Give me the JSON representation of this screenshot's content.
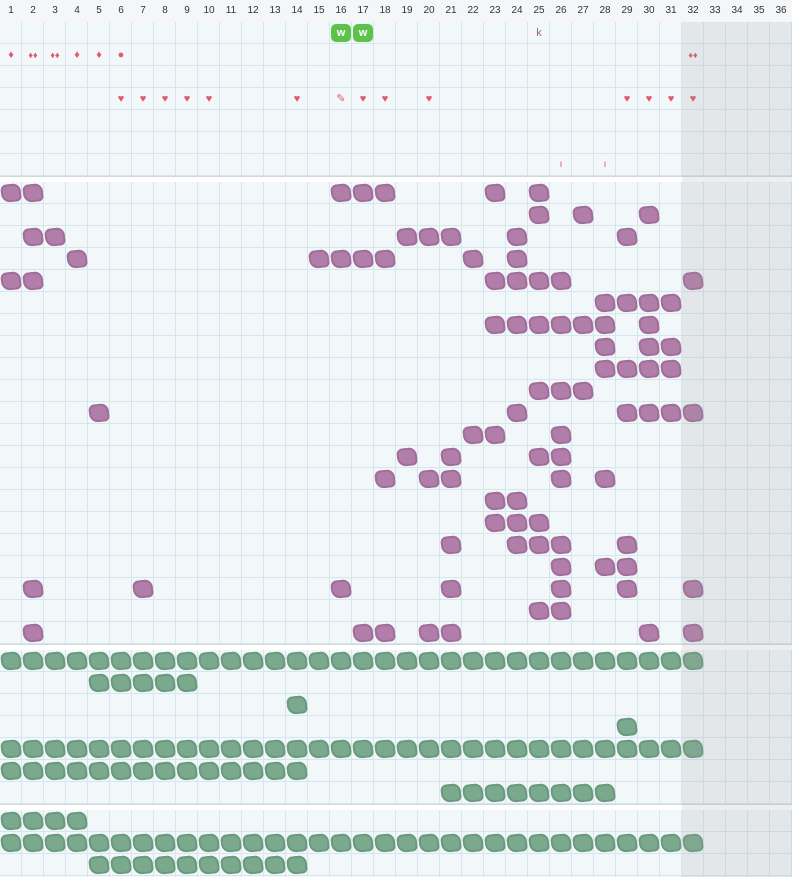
{
  "columns": [
    "1",
    "2",
    "3",
    "4",
    "5",
    "6",
    "7",
    "8",
    "9",
    "10",
    "11",
    "12",
    "13",
    "14",
    "15",
    "16",
    "17",
    "18",
    "19",
    "20",
    "21",
    "22",
    "23",
    "24",
    "25",
    "26",
    "27",
    "28",
    "29",
    "30",
    "31",
    "32",
    "33",
    "34",
    "35",
    "36"
  ],
  "colors": {
    "purple": "#b07ea9",
    "green": "#7aa98d",
    "badge": "#5cc24a",
    "marker": "#e05a6a",
    "grid": "#d6e6ec"
  },
  "markers": [
    {
      "col": 16,
      "row": 0,
      "glyph": "w",
      "kind": "badge"
    },
    {
      "col": 17,
      "row": 0,
      "glyph": "w",
      "kind": "badge"
    },
    {
      "col": 25,
      "row": 0,
      "glyph": "k",
      "kind": "letter"
    },
    {
      "col": 1,
      "row": 1,
      "glyph": "♦",
      "kind": "drop"
    },
    {
      "col": 2,
      "row": 1,
      "glyph": "♦♦",
      "kind": "drop"
    },
    {
      "col": 3,
      "row": 1,
      "glyph": "♦♦",
      "kind": "drop"
    },
    {
      "col": 4,
      "row": 1,
      "glyph": "♦",
      "kind": "drop"
    },
    {
      "col": 5,
      "row": 1,
      "glyph": "♦",
      "kind": "drop"
    },
    {
      "col": 6,
      "row": 1,
      "glyph": "●",
      "kind": "dot"
    },
    {
      "col": 32,
      "row": 1,
      "glyph": "♦♦",
      "kind": "drop"
    },
    {
      "col": 6,
      "row": 3,
      "glyph": "♥",
      "kind": "heart"
    },
    {
      "col": 7,
      "row": 3,
      "glyph": "♥",
      "kind": "heart"
    },
    {
      "col": 8,
      "row": 3,
      "glyph": "♥",
      "kind": "heart"
    },
    {
      "col": 9,
      "row": 3,
      "glyph": "♥",
      "kind": "heart"
    },
    {
      "col": 10,
      "row": 3,
      "glyph": "♥",
      "kind": "heart"
    },
    {
      "col": 14,
      "row": 3,
      "glyph": "♥",
      "kind": "heart"
    },
    {
      "col": 16,
      "row": 3,
      "glyph": "✎",
      "kind": "pen"
    },
    {
      "col": 17,
      "row": 3,
      "glyph": "♥",
      "kind": "heart"
    },
    {
      "col": 18,
      "row": 3,
      "glyph": "♥",
      "kind": "heart"
    },
    {
      "col": 20,
      "row": 3,
      "glyph": "♥",
      "kind": "heart"
    },
    {
      "col": 29,
      "row": 3,
      "glyph": "♥",
      "kind": "heart"
    },
    {
      "col": 30,
      "row": 3,
      "glyph": "♥",
      "kind": "heart"
    },
    {
      "col": 31,
      "row": 3,
      "glyph": "♥",
      "kind": "heart"
    },
    {
      "col": 32,
      "row": 3,
      "glyph": "♥",
      "kind": "heart"
    },
    {
      "col": 26,
      "row": 6,
      "glyph": "ı",
      "kind": "tick"
    },
    {
      "col": 28,
      "row": 6,
      "glyph": "ı",
      "kind": "tick"
    }
  ],
  "purple_rows": [
    [
      1,
      2,
      16,
      17,
      18,
      23,
      25
    ],
    [
      25,
      27,
      30
    ],
    [
      2,
      3,
      19,
      20,
      21,
      24,
      29
    ],
    [
      4,
      15,
      16,
      17,
      18,
      22,
      24
    ],
    [
      1,
      2,
      23,
      24,
      25,
      26,
      32
    ],
    [
      28,
      29,
      30,
      31
    ],
    [
      23,
      24,
      25,
      26,
      27,
      28,
      30
    ],
    [
      28,
      30,
      31
    ],
    [
      28,
      29,
      30,
      31
    ],
    [
      25,
      26,
      27
    ],
    [
      5,
      24,
      29,
      30,
      31,
      32
    ],
    [
      22,
      23,
      26
    ],
    [
      19,
      21,
      25,
      26
    ],
    [
      18,
      20,
      21,
      26,
      28
    ],
    [
      23,
      24
    ],
    [
      23,
      24,
      25
    ],
    [
      21,
      24,
      25,
      26,
      29
    ],
    [
      26,
      28,
      29
    ],
    [
      2,
      7,
      16,
      21,
      26,
      29,
      32
    ],
    [
      25,
      26
    ],
    [
      2,
      17,
      18,
      20,
      21,
      30,
      32
    ]
  ],
  "green_rows_a": [
    [
      1,
      2,
      3,
      4,
      5,
      6,
      7,
      8,
      9,
      10,
      11,
      12,
      13,
      14,
      15,
      16,
      17,
      18,
      19,
      20,
      21,
      22,
      23,
      24,
      25,
      26,
      27,
      28,
      29,
      30,
      31,
      32
    ],
    [
      5,
      6,
      7,
      8,
      9
    ],
    [
      14
    ],
    [
      29
    ],
    [
      1,
      2,
      3,
      4,
      5,
      6,
      7,
      8,
      9,
      10,
      11,
      12,
      13,
      14,
      15,
      16,
      17,
      18,
      19,
      20,
      21,
      22,
      23,
      24,
      25,
      26,
      27,
      28,
      29,
      30,
      31,
      32
    ],
    [
      1,
      2,
      3,
      4,
      5,
      6,
      7,
      8,
      9,
      10,
      11,
      12,
      13,
      14
    ],
    [
      21,
      22,
      23,
      24,
      25,
      26,
      27,
      28
    ]
  ],
  "green_rows_b": [
    [
      1,
      2,
      3,
      4
    ],
    [
      1,
      2,
      3,
      4,
      5,
      6,
      7,
      8,
      9,
      10,
      11,
      12,
      13,
      14,
      15,
      16,
      17,
      18,
      19,
      20,
      21,
      22,
      23,
      24,
      25,
      26,
      27,
      28,
      29,
      30,
      31,
      32
    ],
    [
      5,
      6,
      7,
      8,
      9,
      10,
      11,
      12,
      13,
      14
    ]
  ]
}
